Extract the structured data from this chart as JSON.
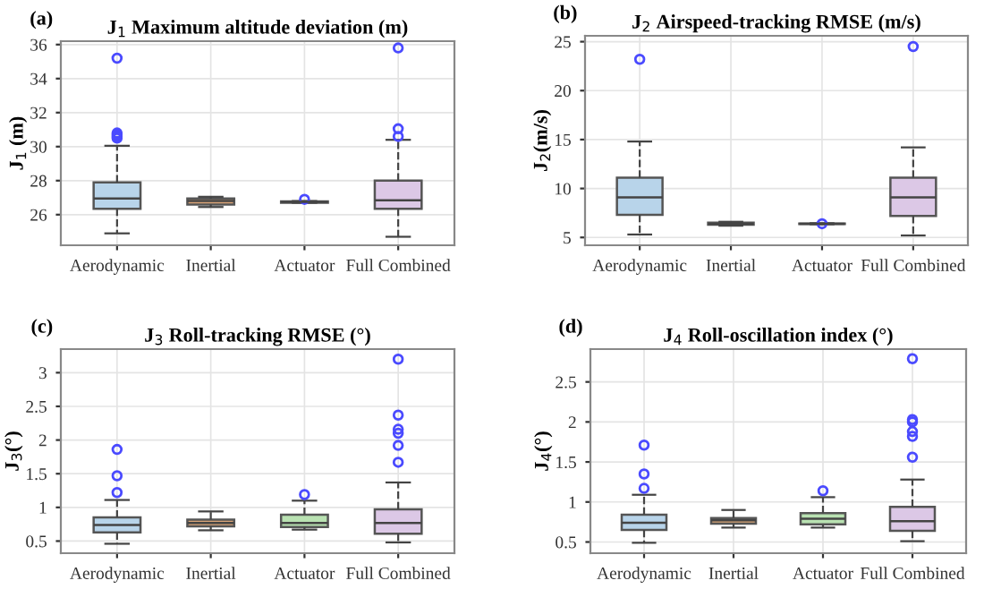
{
  "chart_data": [
    {
      "type": "box",
      "title": "J$_{1}$ Maximum altitude deviation (m)",
      "ylabel": "J$_{1}$ (m)",
      "annotations": [
        "(a)"
      ],
      "categories": [
        "Aerodynamic",
        "Inertial",
        "Actuator",
        "Full Combined"
      ],
      "colors": [
        "#b8d4ea",
        "#d9a477",
        "#b9e2b2",
        "#dcc8e6"
      ],
      "ylim": [
        24.2,
        36.2
      ],
      "yticks": [
        26,
        28,
        30,
        32,
        34,
        36
      ],
      "grid": true,
      "boxes": [
        {
          "low": 24.9,
          "q1": 26.35,
          "median": 26.95,
          "q3": 27.9,
          "high": 30.05,
          "outliers": [
            35.2,
            30.8,
            30.7,
            30.6,
            30.5
          ]
        },
        {
          "low": 26.45,
          "q1": 26.6,
          "median": 26.8,
          "q3": 26.95,
          "high": 27.05
        },
        {
          "low": 26.7,
          "q1": 26.7,
          "median": 26.75,
          "q3": 26.78,
          "high": 26.8,
          "outliers": [
            26.9
          ]
        },
        {
          "low": 24.7,
          "q1": 26.35,
          "median": 26.85,
          "q3": 28.0,
          "high": 30.4,
          "outliers": [
            35.8,
            31.05,
            30.6
          ]
        }
      ]
    },
    {
      "type": "box",
      "title": "J$_{2}$ Airspeed-tracking RMSE (m/s)",
      "ylabel": "J$_{2}$(m/s)",
      "annotations": [
        "(b)"
      ],
      "categories": [
        "Aerodynamic",
        "Inertial",
        "Actuator",
        "Full Combined"
      ],
      "colors": [
        "#b8d4ea",
        "#d9a477",
        "#b9e2b2",
        "#dcc8e6"
      ],
      "ylim": [
        4.2,
        25.6
      ],
      "yticks": [
        5,
        10,
        15,
        20,
        25
      ],
      "grid": true,
      "boxes": [
        {
          "low": 5.3,
          "q1": 7.3,
          "median": 9.1,
          "q3": 11.1,
          "high": 14.8,
          "outliers": [
            23.2
          ]
        },
        {
          "low": 6.2,
          "q1": 6.3,
          "median": 6.4,
          "q3": 6.5,
          "high": 6.6
        },
        {
          "low": 6.35,
          "q1": 6.38,
          "median": 6.4,
          "q3": 6.42,
          "high": 6.45,
          "outliers": [
            6.4
          ]
        },
        {
          "low": 5.2,
          "q1": 7.2,
          "median": 9.1,
          "q3": 11.1,
          "high": 14.2,
          "outliers": [
            24.5
          ]
        }
      ]
    },
    {
      "type": "box",
      "title": "J$_{3}$ Roll-tracking RMSE (°)",
      "ylabel": "J$_{3}$(°)",
      "annotations": [
        "(c)"
      ],
      "categories": [
        "Aerodynamic",
        "Inertial",
        "Actuator",
        "Full Combined"
      ],
      "colors": [
        "#b8d4ea",
        "#d9a477",
        "#b9e2b2",
        "#dcc8e6"
      ],
      "ylim": [
        0.32,
        3.35
      ],
      "yticks": [
        0.5,
        1,
        1.5,
        2,
        2.5,
        3
      ],
      "grid": true,
      "boxes": [
        {
          "low": 0.46,
          "q1": 0.63,
          "median": 0.74,
          "q3": 0.85,
          "high": 1.11,
          "outliers": [
            1.86,
            1.47,
            1.22
          ]
        },
        {
          "low": 0.66,
          "q1": 0.72,
          "median": 0.77,
          "q3": 0.82,
          "high": 0.94
        },
        {
          "low": 0.67,
          "q1": 0.71,
          "median": 0.77,
          "q3": 0.89,
          "high": 1.1,
          "outliers": [
            1.19
          ]
        },
        {
          "low": 0.48,
          "q1": 0.61,
          "median": 0.77,
          "q3": 0.97,
          "high": 1.37,
          "outliers": [
            3.2,
            2.37,
            2.16,
            2.1,
            1.92,
            1.67
          ]
        }
      ]
    },
    {
      "type": "box",
      "title": "J$_{4}$ Roll-oscillation index (°)",
      "ylabel": "J$_{4}$(°)",
      "annotations": [
        "(d)"
      ],
      "categories": [
        "Aerodynamic",
        "Inertial",
        "Actuator",
        "Full Combined"
      ],
      "colors": [
        "#b8d4ea",
        "#d9a477",
        "#b9e2b2",
        "#dcc8e6"
      ],
      "ylim": [
        0.36,
        2.91
      ],
      "yticks": [
        0.5,
        1,
        1.5,
        2,
        2.5
      ],
      "grid": true,
      "boxes": [
        {
          "low": 0.49,
          "q1": 0.65,
          "median": 0.74,
          "q3": 0.84,
          "high": 1.09,
          "outliers": [
            1.71,
            1.35,
            1.17
          ]
        },
        {
          "low": 0.68,
          "q1": 0.73,
          "median": 0.77,
          "q3": 0.8,
          "high": 0.9
        },
        {
          "low": 0.68,
          "q1": 0.72,
          "median": 0.79,
          "q3": 0.86,
          "high": 1.06,
          "outliers": [
            1.14
          ]
        },
        {
          "low": 0.51,
          "q1": 0.64,
          "median": 0.76,
          "q3": 0.94,
          "high": 1.28,
          "outliers": [
            2.79,
            2.03,
            2.0,
            1.88,
            1.82,
            1.56
          ]
        }
      ]
    }
  ]
}
